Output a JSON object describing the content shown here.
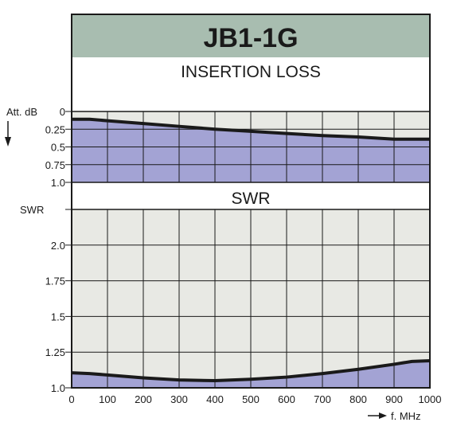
{
  "title": "JB1-1G",
  "colors": {
    "title_bg": "#a8bdb0",
    "plot_bg": "#e8e9e4",
    "fill": "#a3a3d4",
    "curve": "#1a1a1a",
    "grid": "#1a1a1a"
  },
  "chart_data": [
    {
      "type": "area",
      "section_label": "INSERTION LOSS",
      "ylabel": "Att. dB",
      "y_ticks": [
        "0",
        "0.25",
        "0.5",
        "0.75",
        "1.0"
      ],
      "ylim": [
        0,
        1.0
      ],
      "y_inverted": true,
      "x": [
        0,
        50,
        100,
        200,
        300,
        400,
        500,
        600,
        700,
        800,
        900,
        1000
      ],
      "values": [
        0.11,
        0.11,
        0.13,
        0.17,
        0.21,
        0.25,
        0.28,
        0.31,
        0.34,
        0.36,
        0.39,
        0.39
      ],
      "xlim": [
        0,
        1000
      ],
      "grid": true
    },
    {
      "type": "area",
      "section_label": "SWR",
      "ylabel": "SWR",
      "y_ticks": [
        "2.0",
        "1.75",
        "1.5",
        "1.25",
        "1.0"
      ],
      "y_tick_values": [
        2.0,
        1.75,
        1.5,
        1.25,
        1.0
      ],
      "ylim": [
        1.0,
        2.25
      ],
      "x": [
        0,
        50,
        100,
        200,
        300,
        400,
        500,
        600,
        700,
        800,
        900,
        950,
        1000
      ],
      "values": [
        1.105,
        1.1,
        1.09,
        1.07,
        1.055,
        1.05,
        1.06,
        1.075,
        1.1,
        1.13,
        1.165,
        1.185,
        1.19
      ],
      "xlim": [
        0,
        1000
      ],
      "x_ticks": [
        "0",
        "100",
        "200",
        "300",
        "400",
        "500",
        "600",
        "700",
        "800",
        "900",
        "1000"
      ],
      "xlabel": "f. MHz",
      "grid": true
    }
  ]
}
